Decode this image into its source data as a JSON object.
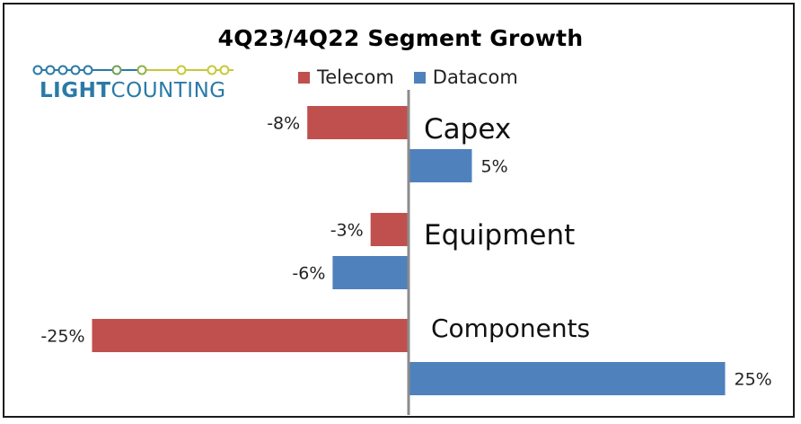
{
  "logo": {
    "text_part1": "LIGHT",
    "text_part2": "COUNTING",
    "text_color": "#2a7aa7",
    "line_color_left": "#2a7aa7",
    "line_color_right": "#c8c83a"
  },
  "chart_data": {
    "type": "bar",
    "orientation": "horizontal",
    "title": "4Q23/4Q22 Segment Growth",
    "categories": [
      "Capex",
      "Equipment",
      "Components"
    ],
    "series": [
      {
        "name": "Telecom",
        "color": "#c0504d",
        "values": [
          -8,
          -3,
          -25
        ],
        "labels": [
          "-8%",
          "-3%",
          "-25%"
        ]
      },
      {
        "name": "Datacom",
        "color": "#4f81bd",
        "values": [
          5,
          -6,
          25
        ],
        "labels": [
          "5%",
          "-6%",
          "25%"
        ]
      }
    ],
    "xlim": [
      -25,
      25
    ],
    "grid": false,
    "legend_position": "top"
  }
}
